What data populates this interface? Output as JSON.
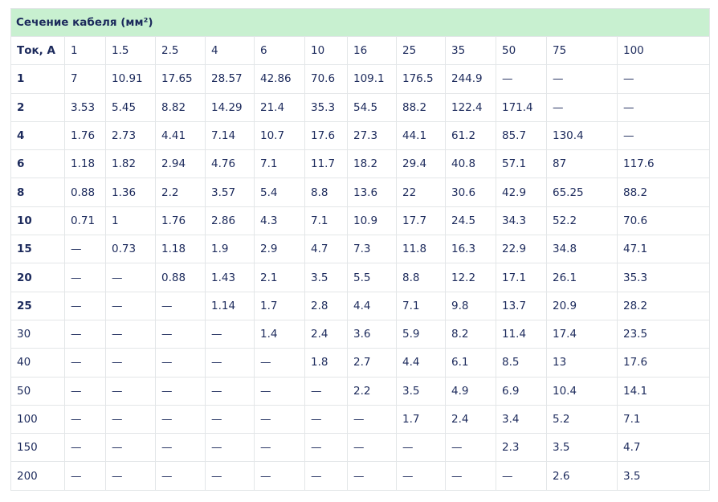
{
  "table": {
    "title": "Сечение кабеля (мм²)",
    "header": [
      "Ток, А",
      "1",
      "1.5",
      "2.5",
      "4",
      "6",
      "10",
      "16",
      "25",
      "35",
      "50",
      "75",
      "100"
    ],
    "rows": [
      [
        "1",
        "7",
        "10.91",
        "17.65",
        "28.57",
        "42.86",
        "70.6",
        "109.1",
        "176.5",
        "244.9",
        "—",
        "—",
        "—"
      ],
      [
        "2",
        "3.53",
        "5.45",
        "8.82",
        "14.29",
        "21.4",
        "35.3",
        "54.5",
        "88.2",
        "122.4",
        "171.4",
        "—",
        "—"
      ],
      [
        "4",
        "1.76",
        "2.73",
        "4.41",
        "7.14",
        "10.7",
        "17.6",
        "27.3",
        "44.1",
        "61.2",
        "85.7",
        "130.4",
        "—"
      ],
      [
        "6",
        "1.18",
        "1.82",
        "2.94",
        "4.76",
        "7.1",
        "11.7",
        "18.2",
        "29.4",
        "40.8",
        "57.1",
        "87",
        "117.6"
      ],
      [
        "8",
        "0.88",
        "1.36",
        "2.2",
        "3.57",
        "5.4",
        "8.8",
        "13.6",
        "22",
        "30.6",
        "42.9",
        "65.25",
        "88.2"
      ],
      [
        "10",
        "0.71",
        "1",
        "1.76",
        "2.86",
        "4.3",
        "7.1",
        "10.9",
        "17.7",
        "24.5",
        "34.3",
        "52.2",
        "70.6"
      ],
      [
        "15",
        "—",
        "0.73",
        "1.18",
        "1.9",
        "2.9",
        "4.7",
        "7.3",
        "11.8",
        "16.3",
        "22.9",
        "34.8",
        "47.1"
      ],
      [
        "20",
        "—",
        "—",
        "0.88",
        "1.43",
        "2.1",
        "3.5",
        "5.5",
        "8.8",
        "12.2",
        "17.1",
        "26.1",
        "35.3"
      ],
      [
        "25",
        "—",
        "—",
        "—",
        "1.14",
        "1.7",
        "2.8",
        "4.4",
        "7.1",
        "9.8",
        "13.7",
        "20.9",
        "28.2"
      ],
      [
        "30",
        "—",
        "—",
        "—",
        "—",
        "1.4",
        "2.4",
        "3.6",
        "5.9",
        "8.2",
        "11.4",
        "17.4",
        "23.5"
      ],
      [
        "40",
        "—",
        "—",
        "—",
        "—",
        "—",
        "1.8",
        "2.7",
        "4.4",
        "6.1",
        "8.5",
        "13",
        "17.6"
      ],
      [
        "50",
        "—",
        "—",
        "—",
        "—",
        "—",
        "—",
        "2.2",
        "3.5",
        "4.9",
        "6.9",
        "10.4",
        "14.1"
      ],
      [
        "100",
        "—",
        "—",
        "—",
        "—",
        "—",
        "—",
        "—",
        "1.7",
        "2.4",
        "3.4",
        "5.2",
        "7.1"
      ],
      [
        "150",
        "—",
        "—",
        "—",
        "—",
        "—",
        "—",
        "—",
        "—",
        "—",
        "2.3",
        "3.5",
        "4.7"
      ],
      [
        "200",
        "—",
        "—",
        "—",
        "—",
        "—",
        "—",
        "—",
        "—",
        "—",
        "—",
        "2.6",
        "3.5"
      ]
    ]
  }
}
